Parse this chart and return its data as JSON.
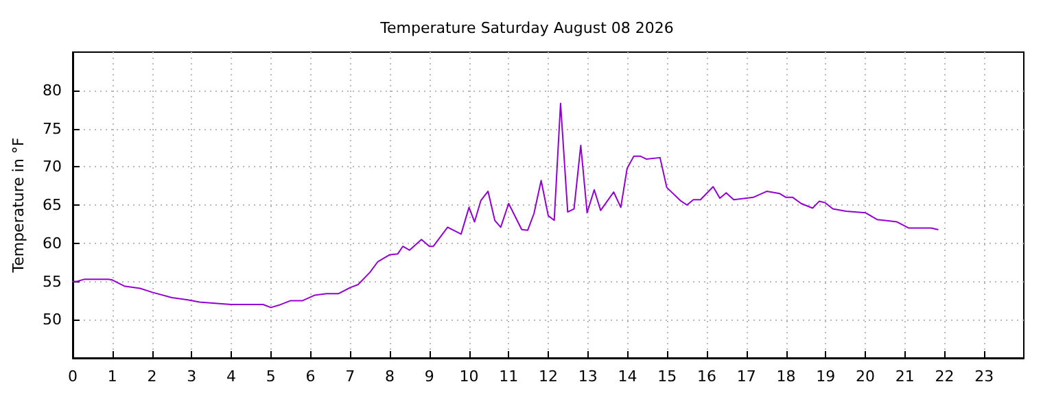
{
  "chart_data": {
    "type": "line",
    "title": "Temperature Saturday August 08 2026",
    "ylabel": "Temperature in °F",
    "xlim": [
      0,
      24
    ],
    "xticks": [
      0,
      1,
      2,
      3,
      4,
      5,
      6,
      7,
      8,
      9,
      10,
      11,
      12,
      13,
      14,
      15,
      16,
      17,
      18,
      19,
      20,
      21,
      22,
      23
    ],
    "ylim": [
      45,
      85
    ],
    "yticks": [
      50,
      55,
      60,
      65,
      70,
      75,
      80
    ],
    "grid": true,
    "marker": "none",
    "line_style": "solid",
    "series": [
      {
        "color": "#9400d3",
        "x": [
          0,
          0.1,
          0.3,
          0.9,
          1.0,
          1.3,
          1.7,
          2.0,
          2.5,
          2.9,
          3.2,
          3.7,
          4.0,
          4.8,
          5.0,
          5.2,
          5.5,
          5.8,
          6.1,
          6.4,
          6.7,
          7.0,
          7.2,
          7.5,
          7.7,
          8.0,
          8.2,
          8.33,
          8.5,
          8.8,
          9.0,
          9.1,
          9.46,
          9.8,
          10.0,
          10.14,
          10.3,
          10.48,
          10.65,
          10.8,
          11.0,
          11.33,
          11.48,
          11.64,
          11.82,
          12.0,
          12.15,
          12.31,
          12.49,
          12.65,
          12.82,
          12.98,
          13.16,
          13.32,
          13.65,
          13.83,
          13.99,
          14.16,
          14.32,
          14.48,
          14.82,
          14.99,
          15.33,
          15.5,
          15.66,
          15.84,
          16.16,
          16.33,
          16.49,
          16.68,
          17.17,
          17.52,
          17.84,
          18.0,
          18.17,
          18.38,
          18.67,
          18.84,
          18.99,
          19.18,
          19.51,
          20.0,
          20.3,
          20.47,
          20.8,
          21.09,
          21.26,
          21.66,
          21.83
        ],
        "values": [
          55.0,
          55.0,
          55.3,
          55.3,
          55.2,
          54.4,
          54.1,
          53.6,
          52.9,
          52.6,
          52.3,
          52.1,
          52.0,
          52.0,
          51.6,
          51.9,
          52.5,
          52.5,
          53.2,
          53.4,
          53.4,
          54.2,
          54.6,
          56.2,
          57.6,
          58.5,
          58.6,
          59.6,
          59.1,
          60.5,
          59.6,
          59.6,
          62.1,
          61.2,
          64.7,
          62.8,
          65.6,
          66.8,
          63.0,
          62.1,
          65.2,
          61.8,
          61.7,
          63.9,
          68.2,
          63.6,
          63.0,
          78.3,
          64.1,
          64.5,
          72.8,
          64.0,
          67.0,
          64.3,
          66.7,
          64.7,
          69.8,
          71.4,
          71.4,
          71.0,
          71.2,
          67.3,
          65.6,
          65.0,
          65.7,
          65.7,
          67.4,
          65.9,
          66.6,
          65.7,
          66.0,
          66.8,
          66.5,
          66.0,
          66.0,
          65.2,
          64.6,
          65.5,
          65.3,
          64.5,
          64.2,
          64.0,
          63.1,
          63.0,
          62.8,
          62.0,
          62.0,
          62.0,
          61.8
        ]
      }
    ]
  }
}
